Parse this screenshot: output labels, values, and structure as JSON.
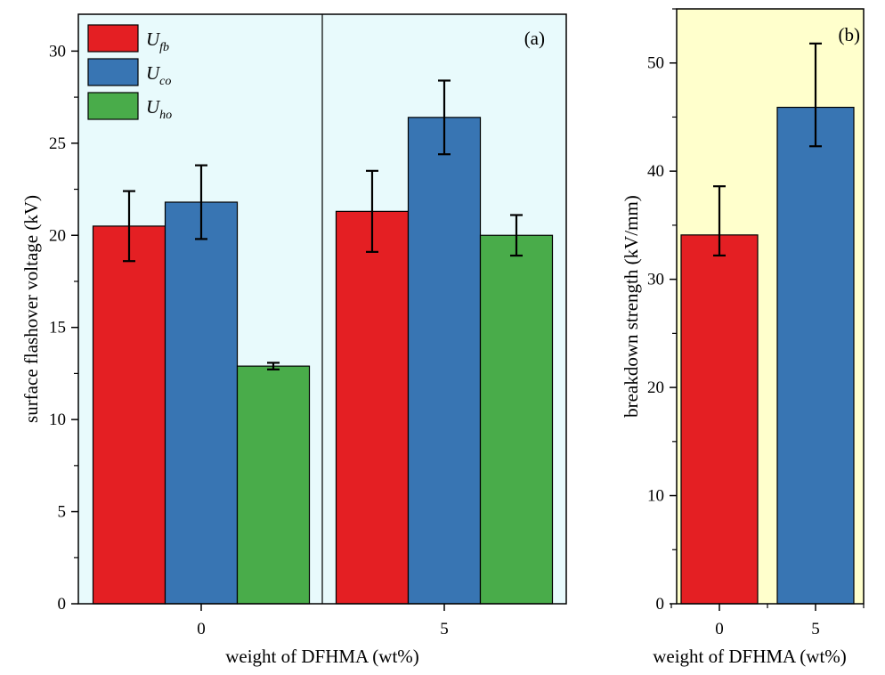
{
  "chart_data": [
    {
      "id": "a",
      "type": "bar",
      "panel_label": "(a)",
      "background_color": "#e8fafc",
      "xlabel": "weight of DFHMA (wt%)",
      "ylabel": "surface flashover voltage (kV)",
      "ylim": [
        0,
        32
      ],
      "yticks": [
        0,
        5,
        10,
        15,
        20,
        25,
        30
      ],
      "categories": [
        "0",
        "5"
      ],
      "series": [
        {
          "name": "U",
          "subscript": "fb",
          "color": "#e41f23",
          "values": [
            20.5,
            21.3
          ],
          "errors": [
            1.9,
            2.2
          ]
        },
        {
          "name": "U",
          "subscript": "co",
          "color": "#3875b3",
          "values": [
            21.8,
            26.4
          ],
          "errors": [
            2.0,
            2.0
          ]
        },
        {
          "name": "U",
          "subscript": "ho",
          "color": "#49ac4a",
          "values": [
            12.9,
            20.0
          ],
          "errors": [
            0.18,
            1.1
          ]
        }
      ],
      "legend_position": "top-left"
    },
    {
      "id": "b",
      "type": "bar",
      "panel_label": "(b)",
      "background_color": "#ffffcc",
      "xlabel": "weight of DFHMA (wt%)",
      "ylabel": "breakdown strength (kV/mm)",
      "ylim": [
        0,
        55
      ],
      "yticks": [
        0,
        10,
        20,
        30,
        40,
        50
      ],
      "categories": [
        "0",
        "5"
      ],
      "series": [
        {
          "name": "breakdown",
          "colors": [
            "#e41f23",
            "#3875b3"
          ],
          "values": [
            34.1,
            45.9
          ],
          "errors_upper": [
            4.5,
            5.9
          ],
          "errors_lower": [
            1.9,
            3.6
          ]
        }
      ]
    }
  ]
}
